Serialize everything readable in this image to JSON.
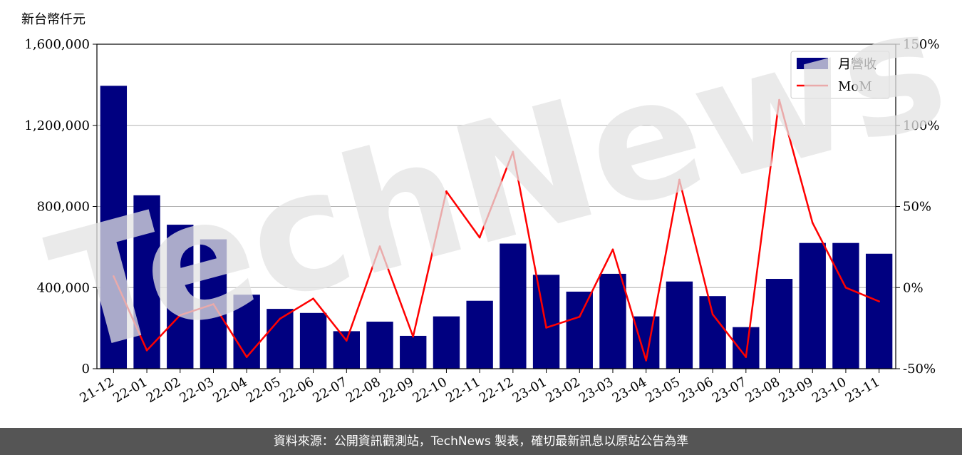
{
  "chart_data": {
    "type": "bar",
    "unit_label": "新台幣仟元",
    "categories": [
      "21-12",
      "22-01",
      "22-02",
      "22-03",
      "22-04",
      "22-05",
      "22-06",
      "22-07",
      "22-08",
      "22-09",
      "22-10",
      "22-11",
      "22-12",
      "23-01",
      "23-02",
      "23-03",
      "23-04",
      "23-05",
      "23-06",
      "23-07",
      "23-08",
      "23-09",
      "23-10",
      "23-11"
    ],
    "series": [
      {
        "name": "月營收",
        "kind": "bar",
        "axis": "left",
        "color": "#000080",
        "values": [
          1395000,
          855000,
          710000,
          638000,
          365000,
          295000,
          275000,
          185000,
          232000,
          162000,
          258000,
          335000,
          617000,
          463000,
          380000,
          468000,
          258000,
          430000,
          358000,
          205000,
          443000,
          620000,
          620000,
          567000
        ]
      },
      {
        "name": "MoM",
        "kind": "line",
        "axis": "right",
        "color": "#ff0000",
        "values": [
          7,
          -38.7,
          -17,
          -10.2,
          -42.8,
          -19.2,
          -6.8,
          -32.7,
          25.4,
          -30.2,
          59.3,
          30.9,
          83.7,
          -24.7,
          -18,
          23.5,
          -44.9,
          66.5,
          -16.5,
          -42.8,
          115.7,
          40,
          0,
          -8.5
        ]
      }
    ],
    "ylim_left": [
      0,
      1600000
    ],
    "yticks_left": [
      "0",
      "400,000",
      "800,000",
      "1,200,000",
      "1,600,000"
    ],
    "ylim_right": [
      -50,
      150
    ],
    "yticks_right": [
      "-50%",
      "0%",
      "50%",
      "100%",
      "150%"
    ],
    "grid": "horizontal",
    "legend_position": "top-right"
  },
  "watermark_text": "TechNews",
  "footer_text": "資料來源：公開資訊觀測站，TechNews 製表，確切最新訊息以原站公告為準"
}
